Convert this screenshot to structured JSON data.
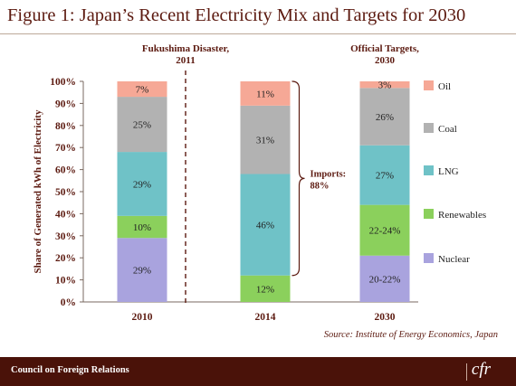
{
  "title": "Figure 1: Japan’s Recent Electricity Mix and Targets for 2030",
  "footer": {
    "org": "Council on Foreign Relations",
    "logo": "cfr"
  },
  "chart_data": {
    "type": "bar",
    "stacked": true,
    "categories": [
      "2010",
      "2014",
      "2030"
    ],
    "ylabel": "Share of Generated kWh of Electricity",
    "xlabel": "",
    "ylim": [
      0,
      100
    ],
    "yticks": [
      "0%",
      "10%",
      "20%",
      "30%",
      "40%",
      "50%",
      "60%",
      "70%",
      "80%",
      "90%",
      "100%"
    ],
    "grid": false,
    "legend_placement": "right",
    "series": [
      {
        "name": "Nuclear",
        "color": "#a9a3de",
        "values": [
          29,
          0,
          21
        ],
        "labels": [
          "29%",
          "",
          "20-22%"
        ]
      },
      {
        "name": "Renewables",
        "color": "#8bd05c",
        "values": [
          10,
          12,
          23
        ],
        "labels": [
          "10%",
          "12%",
          "22-24%"
        ]
      },
      {
        "name": "LNG",
        "color": "#6fc2c7",
        "values": [
          29,
          46,
          27
        ],
        "labels": [
          "29%",
          "46%",
          "27%"
        ]
      },
      {
        "name": "Coal",
        "color": "#b2b2b2",
        "values": [
          25,
          31,
          26
        ],
        "labels": [
          "25%",
          "31%",
          "26%"
        ]
      },
      {
        "name": "Oil",
        "color": "#f6a896",
        "values": [
          7,
          11,
          3
        ],
        "labels": [
          "7%",
          "11%",
          "3%"
        ]
      }
    ],
    "annotations": {
      "event_label": [
        "Fukushima Disaster,",
        "2011"
      ],
      "targets_label": [
        "Official Targets,",
        "2030"
      ],
      "imports_label": [
        "Imports:",
        "88%"
      ],
      "imports_range": [
        12,
        100
      ],
      "source": "Source: Institute of Energy Economics, Japan"
    }
  }
}
